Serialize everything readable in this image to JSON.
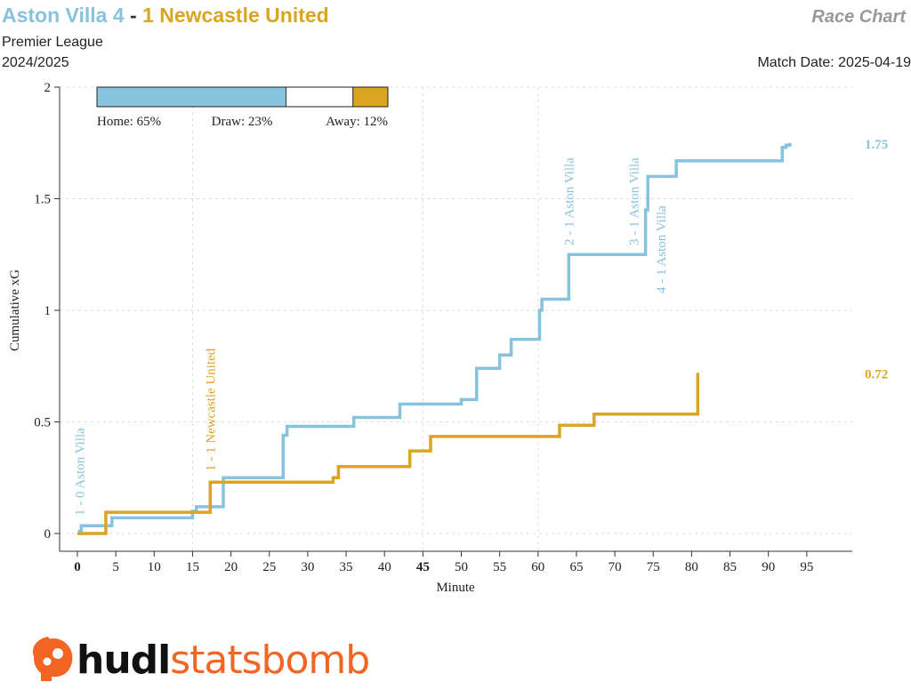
{
  "header": {
    "home_label": "Aston Villa 4",
    "separator": "-",
    "away_label": "1 Newcastle United",
    "chart_type": "Race Chart",
    "competition": "Premier League",
    "season": "2024/2025",
    "match_date": "Match Date: 2025-04-19"
  },
  "win_probability": {
    "home_label": "Home: 65%",
    "draw_label": "Draw: 23%",
    "away_label": "Away: 12%",
    "home": 0.65,
    "draw": 0.23,
    "away": 0.12
  },
  "logo": {
    "part1": "hudl",
    "part2": "statsbomb",
    "icon": "statsbomb-head-icon"
  },
  "colors": {
    "home": "#87c3dd",
    "away": "#daa520",
    "grid": "#dddddd",
    "text": "#222222"
  },
  "chart_data": {
    "type": "line",
    "line_shape": "step",
    "xlabel": "Minute",
    "ylabel": "Cumulative xG",
    "xlim": [
      0,
      95
    ],
    "ylim": [
      0,
      2
    ],
    "x_ticks": [
      0,
      5,
      10,
      15,
      20,
      25,
      30,
      35,
      40,
      45,
      50,
      55,
      60,
      65,
      70,
      75,
      80,
      85,
      90,
      95
    ],
    "x_tick_labels": [
      "0",
      "5",
      "10",
      "15",
      "20",
      "25",
      "30",
      "35",
      "40",
      "45",
      "50",
      "55",
      "60",
      "65",
      "70",
      "75",
      "80",
      "85",
      "90",
      "95"
    ],
    "bold_x_ticks": [
      0,
      45
    ],
    "y_ticks": [
      0,
      0.5,
      1,
      1.5,
      2
    ],
    "y_tick_labels": [
      "0",
      "0.5",
      "1",
      "1.5",
      "2"
    ],
    "grid": true,
    "series": [
      {
        "name": "Aston Villa",
        "color": "#87c3dd",
        "final_label": "1.75",
        "x": [
          0,
          0.3,
          0.5,
          4.5,
          15.0,
          15.5,
          19.0,
          26.8,
          27.3,
          36.0,
          42.0,
          50.0,
          50.3,
          52.0,
          55.0,
          56.5,
          60.2,
          60.5,
          64.0,
          74.0,
          74.3,
          78.0,
          91.8,
          92.3,
          92.8
        ],
        "y": [
          0,
          0.01,
          0.035,
          0.07,
          0.1,
          0.12,
          0.25,
          0.44,
          0.48,
          0.52,
          0.58,
          0.6,
          0.6,
          0.74,
          0.8,
          0.87,
          1.0,
          1.05,
          1.25,
          1.45,
          1.6,
          1.67,
          1.73,
          1.74,
          1.75
        ]
      },
      {
        "name": "Newcastle United",
        "color": "#daa520",
        "final_label": "0.72",
        "x": [
          0,
          3.7,
          17.3,
          33.3,
          34.0,
          43.3,
          46.0,
          62.8,
          67.3,
          80.8,
          80.8
        ],
        "y": [
          0,
          0.095,
          0.23,
          0.25,
          0.3,
          0.37,
          0.435,
          0.485,
          0.535,
          0.72,
          0.72
        ]
      }
    ],
    "annotations": [
      {
        "text": "1 - 0 Aston Villa",
        "minute": 0.3,
        "team": "home"
      },
      {
        "text": "1 - 1 Newcastle United",
        "minute": 17.3,
        "team": "away"
      },
      {
        "text": "2 - 1 Aston Villa",
        "minute": 64.0,
        "team": "home"
      },
      {
        "text": "3 - 1 Aston Villa",
        "minute": 72.5,
        "team": "home"
      },
      {
        "text": "4 - 1 Aston Villa",
        "minute": 76.0,
        "team": "home"
      }
    ]
  }
}
